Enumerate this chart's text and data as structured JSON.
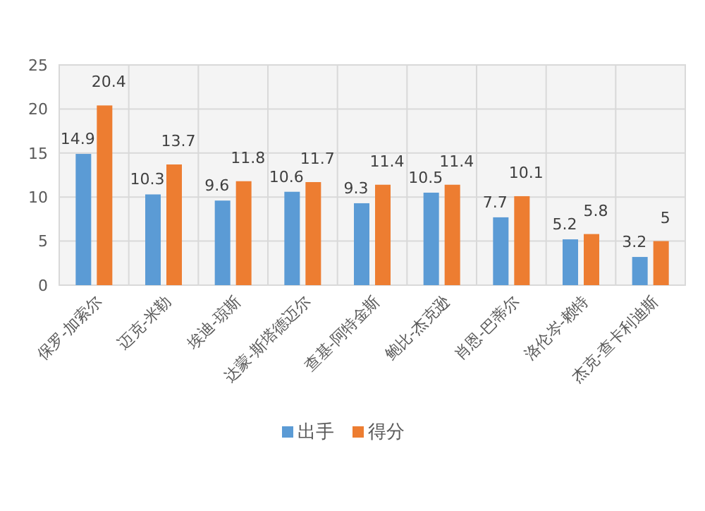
{
  "chart_data": {
    "type": "bar",
    "categories": [
      "保罗-加索尔",
      "迈克-米勒",
      "埃迪-琼斯",
      "达蒙-斯塔德迈尔",
      "查基-阿特金斯",
      "鲍比-杰克逊",
      "肖恩-巴蒂尔",
      "洛伦岑-赖特",
      "杰克-查卡利迪斯"
    ],
    "series": [
      {
        "name": "出手",
        "color": "#5b9bd5",
        "values": [
          14.9,
          10.3,
          9.6,
          10.6,
          9.3,
          10.5,
          7.7,
          5.2,
          3.2
        ]
      },
      {
        "name": "得分",
        "color": "#ed7d31",
        "values": [
          20.4,
          13.7,
          11.8,
          11.7,
          11.4,
          11.4,
          10.1,
          5.8,
          5
        ]
      }
    ],
    "ylim": [
      0,
      25
    ],
    "yticks": [
      0,
      5,
      10,
      15,
      20,
      25
    ],
    "grid": true,
    "data_labels": true,
    "legend": "bottom"
  }
}
